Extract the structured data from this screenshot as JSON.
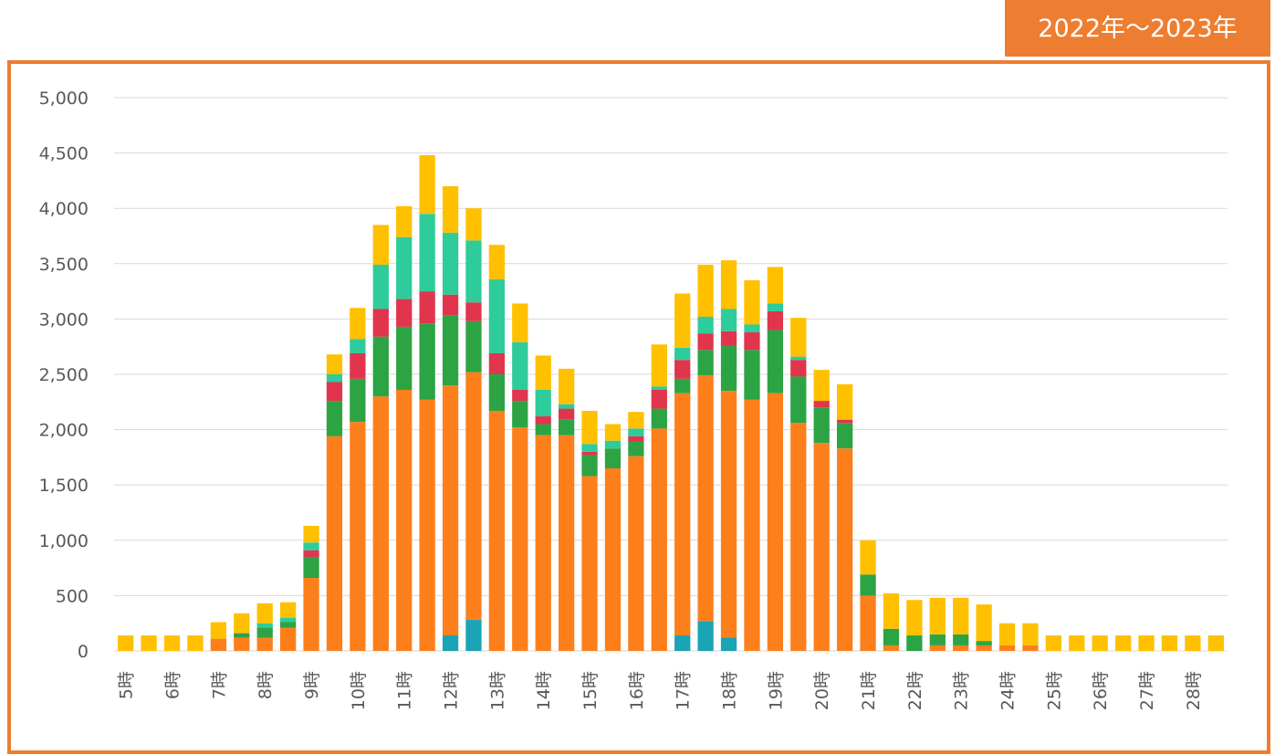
{
  "chart_data": {
    "type": "stacked_bar",
    "title": "2022年～2023年",
    "categories": [
      "5時",
      null,
      "6時",
      null,
      "7時",
      null,
      "8時",
      null,
      "9時",
      null,
      "10時",
      null,
      "11時",
      null,
      "12時",
      null,
      "13時",
      null,
      "14時",
      null,
      "15時",
      null,
      "16時",
      null,
      "17時",
      null,
      "18時",
      null,
      "19時",
      null,
      "20時",
      null,
      "21時",
      null,
      "22時",
      null,
      "23時",
      null,
      "24時",
      null,
      "25時",
      null,
      "26時",
      null,
      "27時",
      null,
      "28時",
      null
    ],
    "series": [
      {
        "color": "#1ba3b6",
        "values": [
          0,
          0,
          0,
          0,
          0,
          0,
          0,
          0,
          0,
          0,
          0,
          0,
          0,
          0,
          140,
          280,
          0,
          0,
          0,
          0,
          0,
          0,
          0,
          0,
          140,
          270,
          120,
          0,
          0,
          0,
          0,
          0,
          0,
          0,
          0,
          0,
          0,
          0,
          0,
          0,
          0,
          0,
          0,
          0,
          0,
          0,
          0,
          0
        ]
      },
      {
        "color": "#fd7f1b",
        "values": [
          0,
          0,
          0,
          0,
          110,
          120,
          120,
          210,
          660,
          1940,
          2070,
          2300,
          2360,
          2270,
          2260,
          2240,
          2170,
          2020,
          1950,
          1950,
          1580,
          1650,
          1760,
          2010,
          2190,
          2220,
          2230,
          2270,
          2330,
          2060,
          1880,
          1830,
          500,
          50,
          0,
          50,
          50,
          50,
          50,
          50,
          0,
          0,
          0,
          0,
          0,
          0,
          0,
          0
        ]
      },
      {
        "color": "#2ca444",
        "values": [
          0,
          0,
          0,
          0,
          0,
          40,
          90,
          50,
          190,
          320,
          390,
          540,
          570,
          690,
          630,
          460,
          330,
          240,
          100,
          140,
          190,
          180,
          130,
          180,
          130,
          230,
          410,
          450,
          570,
          420,
          320,
          230,
          190,
          150,
          140,
          100,
          100,
          40,
          0,
          0,
          0,
          0,
          0,
          0,
          0,
          0,
          0,
          0
        ]
      },
      {
        "color": "#e0354d",
        "values": [
          0,
          0,
          0,
          0,
          0,
          0,
          0,
          0,
          60,
          170,
          230,
          250,
          250,
          290,
          190,
          170,
          190,
          100,
          70,
          100,
          30,
          0,
          50,
          170,
          170,
          150,
          130,
          160,
          170,
          150,
          60,
          30,
          0,
          0,
          0,
          0,
          0,
          0,
          0,
          0,
          0,
          0,
          0,
          0,
          0,
          0,
          0,
          0
        ]
      },
      {
        "color": "#2ecc9a",
        "values": [
          0,
          0,
          0,
          0,
          0,
          0,
          40,
          40,
          70,
          70,
          130,
          400,
          560,
          700,
          560,
          560,
          670,
          430,
          240,
          40,
          70,
          70,
          70,
          30,
          110,
          150,
          200,
          70,
          70,
          30,
          0,
          0,
          0,
          0,
          0,
          0,
          0,
          0,
          0,
          0,
          0,
          0,
          0,
          0,
          0,
          0,
          0,
          0
        ]
      },
      {
        "color": "#ffc000",
        "values": [
          140,
          140,
          140,
          140,
          150,
          180,
          180,
          140,
          150,
          180,
          280,
          360,
          280,
          530,
          420,
          290,
          310,
          350,
          310,
          320,
          300,
          150,
          150,
          380,
          490,
          470,
          440,
          400,
          330,
          350,
          280,
          320,
          310,
          320,
          320,
          330,
          330,
          330,
          200,
          200,
          140,
          140,
          140,
          140,
          140,
          140,
          140,
          140
        ]
      }
    ],
    "ylim": [
      0,
      5000
    ],
    "yticks": [
      0,
      500,
      {
        "value": 1000,
        "label": "1,000"
      },
      {
        "value": 1500,
        "label": "1,500"
      },
      {
        "value": 2000,
        "label": "2,000"
      },
      {
        "value": 2500,
        "label": "2,500"
      },
      {
        "value": 3000,
        "label": "3,000"
      },
      {
        "value": 3500,
        "label": "3,500"
      },
      {
        "value": 4000,
        "label": "4,000"
      },
      {
        "value": 4500,
        "label": "4,500"
      },
      {
        "value": 5000,
        "label": "5,000"
      }
    ],
    "grid": true
  }
}
